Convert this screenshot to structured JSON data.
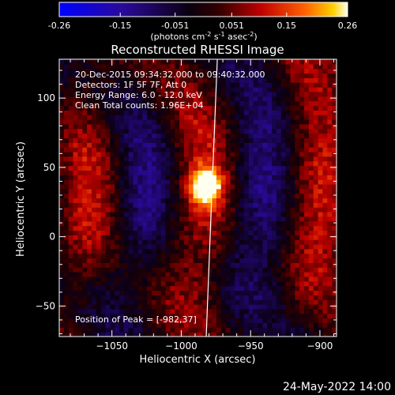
{
  "chart_data": {
    "type": "heatmap",
    "title": "Reconstructed RHESSI Image",
    "xlabel": "Heliocentric X (arcsec)",
    "ylabel": "Heliocentric Y (arcsec)",
    "xlim": [
      -1088,
      -888
    ],
    "ylim": [
      -72,
      128
    ],
    "xticks": [
      -1050,
      -1000,
      -950,
      -900
    ],
    "yticks": [
      -50,
      0,
      50,
      100
    ],
    "colorbar": {
      "min": -0.26,
      "max": 0.26,
      "ticks": [
        -0.26,
        -0.15,
        -0.051,
        0.051,
        0.15,
        0.26
      ],
      "tick_labels": [
        "-0.26",
        "-0.15",
        "-0.051",
        "0.051",
        "0.15",
        "0.26"
      ],
      "units_label": "(photons cm",
      "units_sup1": "-2",
      "units_mid": " s",
      "units_sup2": "-1",
      "units_mid2": " asec",
      "units_sup3": "-2",
      "units_end": ")"
    },
    "info_lines": [
      "20-Dec-2015 09:34:32.000 to 09:40:32.000",
      "Detectors: 1F 5F 7F, Att 0",
      "Energy Range: 6.0 - 12.0 keV",
      "Clean     Total counts: 1.96E+04"
    ],
    "peak_label": "Position of Peak = [-982,37]",
    "peak": [
      -982,
      37
    ],
    "limb_x": [
      -974,
      -978,
      -982
    ]
  },
  "footer": {
    "date": "24-May-2022 14:00"
  }
}
